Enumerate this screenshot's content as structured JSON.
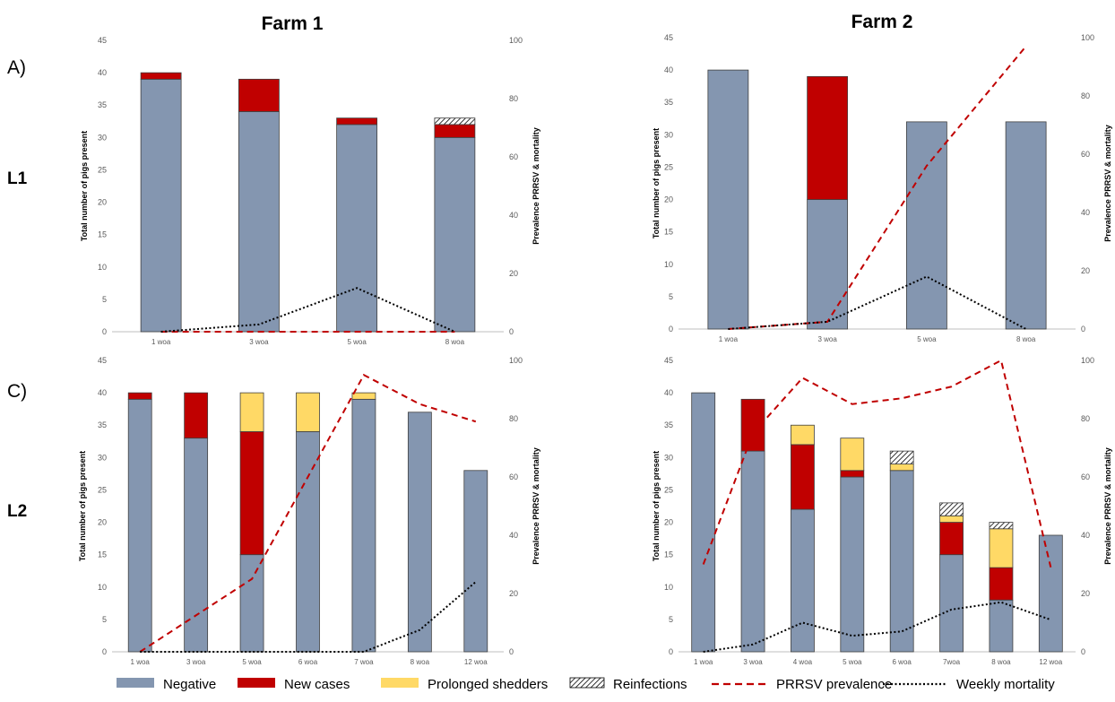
{
  "labels": {
    "farm1": "Farm 1",
    "farm2": "Farm 2",
    "rowA": "A)",
    "rowC": "C)",
    "rowL1": "L1",
    "rowL2": "L2"
  },
  "legend": [
    {
      "key": "negative",
      "label": "Negative",
      "color": "#8496B0"
    },
    {
      "key": "new",
      "label": "New cases",
      "color": "#C00000"
    },
    {
      "key": "prolonged",
      "label": "Prolonged shedders",
      "color": "#FFD966"
    },
    {
      "key": "reinf",
      "label": "Reinfections",
      "color": "hatch"
    },
    {
      "key": "prev",
      "label": "PRRSV prevalence",
      "color": "#C00000"
    },
    {
      "key": "mort",
      "label": "Weekly mortality",
      "color": "#000000"
    }
  ],
  "chart_data": [
    {
      "id": "L1-farm1",
      "type": "bar",
      "ylabel": "Total number of pigs present",
      "y2label": "Prevalence PRRSV & mortality",
      "ylim": [
        0,
        45
      ],
      "y2lim": [
        0,
        100
      ],
      "categories": [
        "1 woa",
        "3 woa",
        "5 woa",
        "8 woa"
      ],
      "stacks": {
        "Negative": [
          39,
          34,
          32,
          30
        ],
        "New cases": [
          1,
          5,
          1,
          2
        ],
        "Prolonged shedders": [
          0,
          0,
          0,
          0
        ],
        "Reinfections": [
          0,
          0,
          0,
          1
        ]
      },
      "prevalence": [
        0,
        0,
        0,
        0
      ],
      "mortality": [
        0,
        2.5,
        15,
        0
      ]
    },
    {
      "id": "L1-farm2",
      "type": "bar",
      "ylabel": "Total number of pigs present",
      "y2label": "Prevalence PRRSV & mortality",
      "ylim": [
        0,
        45
      ],
      "y2lim": [
        0,
        100
      ],
      "categories": [
        "1 woa",
        "3 woa",
        "5 woa",
        "8 woa"
      ],
      "stacks": {
        "Negative": [
          40,
          20,
          32,
          32
        ],
        "New cases": [
          0,
          19,
          0,
          0
        ],
        "Prolonged shedders": [
          0,
          0,
          0,
          0
        ],
        "Reinfections": [
          0,
          0,
          0,
          0
        ]
      },
      "prevalence": [
        0,
        2.5,
        56,
        97
      ],
      "mortality": [
        0,
        2.5,
        18,
        0
      ]
    },
    {
      "id": "L2-farm1",
      "type": "bar",
      "ylabel": "Total number of pigs present",
      "y2label": "Prevalence PRRSV & mortality",
      "ylim": [
        0,
        45
      ],
      "y2lim": [
        0,
        100
      ],
      "categories": [
        "1 woa",
        "3 woa",
        "5 woa",
        "6 woa",
        "7 woa",
        "8 woa",
        "12 woa"
      ],
      "stacks": {
        "Negative": [
          39,
          33,
          15,
          34,
          39,
          37,
          28
        ],
        "New cases": [
          1,
          7,
          19,
          0,
          0,
          0,
          0
        ],
        "Prolonged shedders": [
          0,
          0,
          6,
          6,
          1,
          0,
          0
        ],
        "Reinfections": [
          0,
          0,
          0,
          0,
          0,
          0,
          0
        ]
      },
      "prevalence": [
        0,
        12.5,
        25,
        60,
        95,
        85,
        79
      ],
      "mortality": [
        0,
        0,
        0,
        0,
        0,
        7.5,
        24
      ]
    },
    {
      "id": "L2-farm2",
      "type": "bar",
      "ylabel": "Total number of pigs present",
      "y2label": "Prevalence PRRSV & mortality",
      "ylim": [
        0,
        45
      ],
      "y2lim": [
        0,
        100
      ],
      "categories": [
        "1 woa",
        "3 woa",
        "4 woa",
        "5 woa",
        "6 woa",
        "7woa",
        "8 woa",
        "12 woa"
      ],
      "stacks": {
        "Negative": [
          40,
          31,
          22,
          27,
          28,
          15,
          8,
          18
        ],
        "New cases": [
          0,
          8,
          10,
          1,
          0,
          5,
          5,
          0
        ],
        "Prolonged shedders": [
          0,
          0,
          3,
          5,
          1,
          1,
          6,
          0
        ],
        "Reinfections": [
          0,
          0,
          0,
          0,
          2,
          2,
          1,
          0
        ]
      },
      "prevalence": [
        30,
        75,
        94,
        85,
        87,
        91,
        100,
        29
      ],
      "mortality": [
        0,
        2.5,
        10,
        5.5,
        7,
        14.5,
        17,
        11
      ]
    }
  ]
}
